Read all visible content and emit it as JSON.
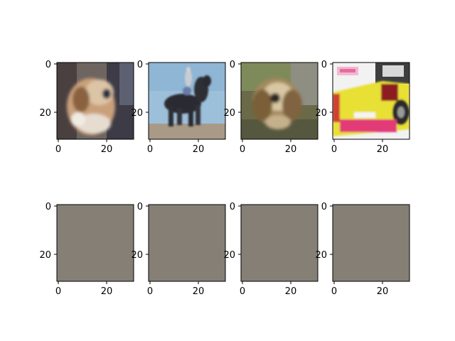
{
  "figure": {
    "subplots": [
      {
        "image": "dog-photo-thumbnail",
        "x_ticks": [
          "0",
          "20"
        ],
        "y_ticks": [
          "0",
          "20"
        ]
      },
      {
        "image": "horse-rider-photo-thumbnail",
        "x_ticks": [
          "0",
          "20"
        ],
        "y_ticks": [
          "0",
          "20"
        ]
      },
      {
        "image": "dog-photo-thumbnail",
        "x_ticks": [
          "0",
          "20"
        ],
        "y_ticks": [
          "0",
          "20"
        ]
      },
      {
        "image": "yellow-car-photo-thumbnail",
        "x_ticks": [
          "0",
          "20"
        ],
        "y_ticks": [
          "0",
          "20"
        ]
      },
      {
        "image": "uniform-gray-output",
        "x_ticks": [
          "0",
          "20"
        ],
        "y_ticks": [
          "0",
          "20"
        ]
      },
      {
        "image": "uniform-gray-output",
        "x_ticks": [
          "0",
          "20"
        ],
        "y_ticks": [
          "0",
          "20"
        ]
      },
      {
        "image": "uniform-gray-output",
        "x_ticks": [
          "0",
          "20"
        ],
        "y_ticks": [
          "0",
          "20"
        ]
      },
      {
        "image": "uniform-gray-output",
        "x_ticks": [
          "0",
          "20"
        ],
        "y_ticks": [
          "0",
          "20"
        ]
      }
    ],
    "colors": {
      "gray_output": "#857f76",
      "axis": "#000000"
    }
  }
}
